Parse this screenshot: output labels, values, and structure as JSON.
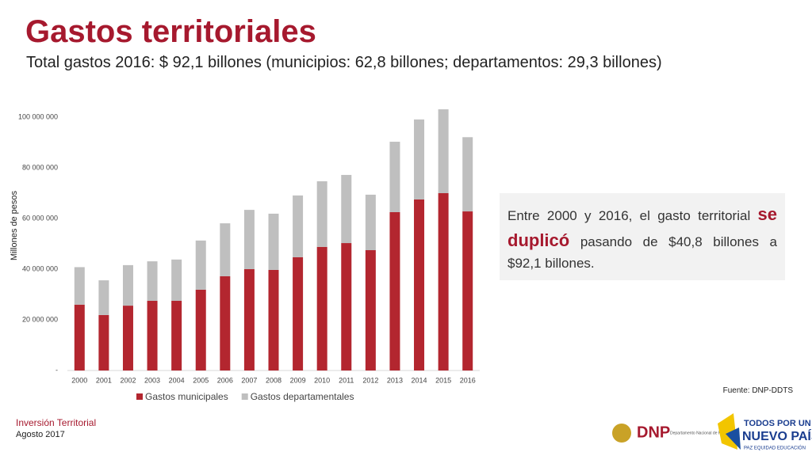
{
  "slide": {
    "title": "Gastos territoriales",
    "subtitle": "Total gastos 2016: $ 92,1 billones (municipios: 62,8 billones; departamentos: 29,3 billones)",
    "callout": [
      "Entre 2000 y 2016, el gasto territorial ",
      "se duplicó",
      " pasando de $40,8 billones a $92,1 billones."
    ],
    "source": "Fuente: DNP-DDTS",
    "footer": [
      "Inversión Territorial",
      "Agosto 2017"
    ],
    "logos": [
      "DNP",
      "Departamento Nacional de Planeación",
      "TODOS POR UN",
      "NUEVO PAÍS",
      "PAZ  EQUIDAD  EDUCACIÓN"
    ]
  },
  "chart_data": {
    "type": "stacked_bar",
    "y_label": "Millones de pesos",
    "categories": [
      "2000",
      "2001",
      "2002",
      "2003",
      "2004",
      "2005",
      "2006",
      "2007",
      "2008",
      "2009",
      "2010",
      "2011",
      "2012",
      "2013",
      "2014",
      "2015",
      "2016"
    ],
    "series": [
      {
        "name": "Gastos municipales",
        "color": "#b3262f",
        "values": [
          26000000,
          21900000,
          25600000,
          27500000,
          27500000,
          31900000,
          37200000,
          40000000,
          39700000,
          44700000,
          48800000,
          50300000,
          47500000,
          62500000,
          67500000,
          70000000,
          62800000
        ]
      },
      {
        "name": "Gastos departamentales",
        "color": "#bfbfbf",
        "values": [
          14800000,
          13700000,
          16000000,
          15600000,
          16300000,
          19400000,
          20900000,
          23400000,
          22200000,
          24400000,
          25900000,
          26900000,
          21900000,
          27800000,
          31600000,
          33100000,
          29300000
        ]
      }
    ],
    "ylim": [
      0,
      105000000
    ],
    "yticks": [
      {
        "value": 0,
        "label": "-"
      },
      {
        "value": 20000000,
        "label": "20 000 000"
      },
      {
        "value": 40000000,
        "label": "40 000 000"
      },
      {
        "value": 60000000,
        "label": "60 000 000"
      },
      {
        "value": 80000000,
        "label": "80 000 000"
      },
      {
        "value": 100000000,
        "label": "100 000 000"
      }
    ],
    "legend": "bottom"
  }
}
